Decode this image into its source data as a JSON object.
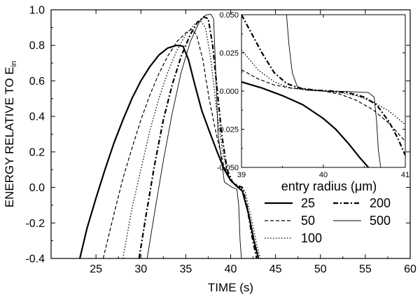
{
  "chart_data": [
    {
      "type": "line",
      "xlabel": "TIME (s)",
      "ylabel": "ENERGY RELATIVE TO E",
      "ylabel_subscript": "in",
      "xlim": [
        20,
        60
      ],
      "ylim": [
        -0.4,
        1.0
      ],
      "x_ticks": [
        "25",
        "30",
        "35",
        "40",
        "45",
        "50",
        "55",
        "60"
      ],
      "y_ticks": [
        "-0.4",
        "-0.2",
        "0.0",
        "0.2",
        "0.4",
        "0.6",
        "0.8",
        "1.0"
      ],
      "x_tick_values": [
        25,
        30,
        35,
        40,
        45,
        50,
        55,
        60
      ],
      "y_tick_values": [
        -0.4,
        -0.2,
        0.0,
        0.2,
        0.4,
        0.6,
        0.8,
        1.0
      ],
      "grid": false,
      "legend": {
        "title": "entry radius (μm)",
        "placement": "lower-right"
      },
      "series": [
        {
          "name": "25",
          "style": "solid-thick",
          "x": [
            23.2,
            24,
            25,
            26,
            27,
            28,
            29,
            30,
            31,
            32,
            33,
            34,
            34.7,
            35.3,
            36,
            36.8,
            37.6,
            38.5,
            39.3,
            40,
            40.6,
            41.3,
            42,
            42.6,
            43.1
          ],
          "y": [
            -0.4,
            -0.23,
            -0.06,
            0.1,
            0.25,
            0.38,
            0.5,
            0.6,
            0.68,
            0.745,
            0.785,
            0.8,
            0.795,
            0.72,
            0.58,
            0.43,
            0.32,
            0.2,
            0.1,
            0.04,
            0.01,
            -0.02,
            -0.15,
            -0.3,
            -0.4
          ]
        },
        {
          "name": "50",
          "style": "dashed",
          "x": [
            25.8,
            27,
            28,
            29,
            30,
            31,
            32,
            33,
            34,
            35,
            35.6,
            36.2,
            36.9,
            37.6,
            38.4,
            39.2,
            40,
            40.6,
            41.2,
            42,
            42.6,
            43.1
          ],
          "y": [
            -0.4,
            -0.15,
            0.05,
            0.22,
            0.38,
            0.52,
            0.64,
            0.74,
            0.82,
            0.87,
            0.89,
            0.86,
            0.72,
            0.5,
            0.3,
            0.13,
            0.04,
            0.01,
            -0.01,
            -0.15,
            -0.3,
            -0.4
          ]
        },
        {
          "name": "100",
          "style": "dotted",
          "x": [
            28.0,
            29,
            30,
            31,
            32,
            33,
            34,
            35,
            36,
            36.6,
            37.2,
            37.8,
            38.4,
            39.1,
            39.8,
            40.4,
            41,
            41.6,
            42.2,
            42.9,
            43.3
          ],
          "y": [
            -0.4,
            -0.12,
            0.1,
            0.32,
            0.5,
            0.65,
            0.77,
            0.86,
            0.92,
            0.94,
            0.9,
            0.72,
            0.45,
            0.2,
            0.06,
            0.02,
            0.0,
            -0.02,
            -0.15,
            -0.32,
            -0.4
          ]
        },
        {
          "name": "200",
          "style": "dash-dot",
          "x": [
            29.8,
            30.5,
            31.5,
            32.5,
            33.5,
            34.5,
            35.5,
            36.3,
            37,
            37.5,
            38,
            38.5,
            39,
            39.6,
            40.2,
            40.8,
            41.3,
            41.8,
            42.4,
            42.9
          ],
          "y": [
            -0.4,
            -0.18,
            0.12,
            0.38,
            0.58,
            0.74,
            0.86,
            0.93,
            0.96,
            0.95,
            0.8,
            0.55,
            0.3,
            0.1,
            0.03,
            0.01,
            0.0,
            -0.1,
            -0.28,
            -0.4
          ]
        },
        {
          "name": "500",
          "style": "solid-thin",
          "x": [
            30.7,
            31.5,
            32.5,
            33.5,
            34.5,
            35.5,
            36.5,
            37.2,
            37.8,
            38.1,
            38.3,
            38.6,
            39.3,
            40.2,
            40.7,
            40.9,
            41.05,
            41.2
          ],
          "y": [
            -0.4,
            -0.15,
            0.15,
            0.42,
            0.65,
            0.82,
            0.93,
            0.97,
            0.975,
            0.95,
            0.7,
            0.3,
            0.03,
            0.0,
            -0.01,
            -0.1,
            -0.3,
            -0.4
          ]
        }
      ]
    },
    {
      "type": "line",
      "role": "inset",
      "xlim": [
        39,
        41
      ],
      "ylim": [
        -0.05,
        0.05
      ],
      "x_ticks": [
        "39",
        "40",
        "41"
      ],
      "y_ticks": [
        "-0.050",
        "-0.025",
        "0.000",
        "0.025",
        "0.050"
      ],
      "x_tick_values": [
        39,
        40,
        41
      ],
      "y_tick_values": [
        -0.05,
        -0.025,
        0.0,
        0.025,
        0.05
      ],
      "grid": false,
      "series": [
        {
          "name": "25",
          "style": "solid-thick",
          "x": [
            39.0,
            39.25,
            39.5,
            39.75,
            40.0,
            40.15,
            40.3,
            40.45,
            40.55
          ],
          "y": [
            0.006,
            0.002,
            -0.003,
            -0.009,
            -0.018,
            -0.025,
            -0.034,
            -0.044,
            -0.05
          ]
        },
        {
          "name": "50",
          "style": "dashed",
          "x": [
            39.0,
            39.2,
            39.4,
            39.6,
            39.8,
            40.0,
            40.2,
            40.4,
            40.6,
            40.8,
            41.0
          ],
          "y": [
            0.014,
            0.008,
            0.004,
            0.002,
            0.001,
            0.0,
            -0.002,
            -0.006,
            -0.012,
            -0.021,
            -0.033
          ]
        },
        {
          "name": "100",
          "style": "dotted",
          "x": [
            39.0,
            39.2,
            39.4,
            39.6,
            39.8,
            40.0,
            40.2,
            40.4,
            40.6,
            40.8,
            41.0
          ],
          "y": [
            0.027,
            0.014,
            0.006,
            0.002,
            0.0006,
            0.0,
            -0.001,
            -0.003,
            -0.007,
            -0.013,
            -0.022
          ]
        },
        {
          "name": "200",
          "style": "dash-dot",
          "x": [
            39.0,
            39.1,
            39.25,
            39.4,
            39.55,
            39.7,
            39.9,
            40.1,
            40.3,
            40.5,
            40.65,
            40.8,
            40.9,
            41.0
          ],
          "y": [
            0.05,
            0.04,
            0.025,
            0.012,
            0.005,
            0.002,
            0.0006,
            0.0,
            -0.001,
            -0.004,
            -0.009,
            -0.02,
            -0.03,
            -0.042
          ]
        },
        {
          "name": "500",
          "style": "solid-thin",
          "x": [
            39.55,
            39.58,
            39.62,
            39.68,
            39.8,
            40.0,
            40.3,
            40.55,
            40.62,
            40.65,
            40.67,
            40.7
          ],
          "y": [
            0.05,
            0.03,
            0.012,
            0.003,
            0.0006,
            0.0,
            -0.0003,
            -0.001,
            -0.004,
            -0.02,
            -0.038,
            -0.05
          ]
        }
      ]
    }
  ]
}
